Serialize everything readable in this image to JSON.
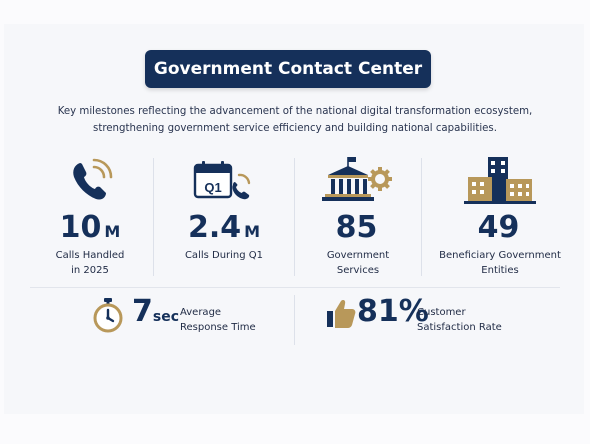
{
  "header": {
    "title": "Government Contact Center",
    "subtitle_line1": "Key milestones reflecting the advancement of the national digital transformation ecosystem,",
    "subtitle_line2": "strengthening government service efficiency and building national capabilities."
  },
  "stats": [
    {
      "value": "10",
      "unit": "M",
      "label_line1": "Calls Handled",
      "label_line2": "in 2025",
      "icon": "phone-icon"
    },
    {
      "value": "2.4",
      "unit": "M",
      "label_line1": "Calls During Q1",
      "label_line2": "",
      "icon": "q1-calendar-phone-icon",
      "icon_text": "Q1"
    },
    {
      "value": "85",
      "unit": "",
      "label_line1": "Government",
      "label_line2": "Services",
      "icon": "government-building-gear-icon"
    },
    {
      "value": "49",
      "unit": "",
      "label_line1": "Beneficiary Government",
      "label_line2": "Entities",
      "icon": "city-buildings-icon"
    }
  ],
  "metrics": [
    {
      "value": "7",
      "unit": "sec",
      "label_line1": "Average",
      "label_line2": "Response Time",
      "icon": "stopwatch-icon"
    },
    {
      "value": "81%",
      "unit": "",
      "label_line1": "Customer",
      "label_line2": "Satisfaction Rate",
      "icon": "thumbs-up-icon"
    }
  ],
  "colors": {
    "navy": "#15305a",
    "gold": "#b8985a",
    "text": "#1f2a44"
  }
}
